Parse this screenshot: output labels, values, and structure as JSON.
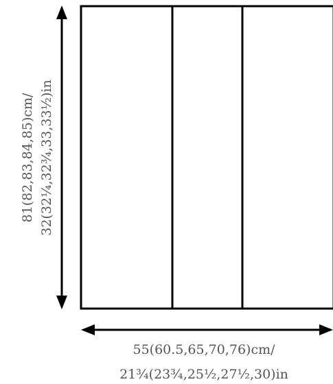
{
  "diagram": {
    "panels": 3,
    "stroke_color": "#000000",
    "text_color": "#555555",
    "height_label": {
      "line1": "81(82,83,84,85)cm/",
      "line2": "32(32¼,32¾,33,33½)in"
    },
    "width_label": {
      "line1": "55(60.5,65,70,76)cm/",
      "line2": "21¾(23¾,25½,27½,30)in"
    }
  }
}
